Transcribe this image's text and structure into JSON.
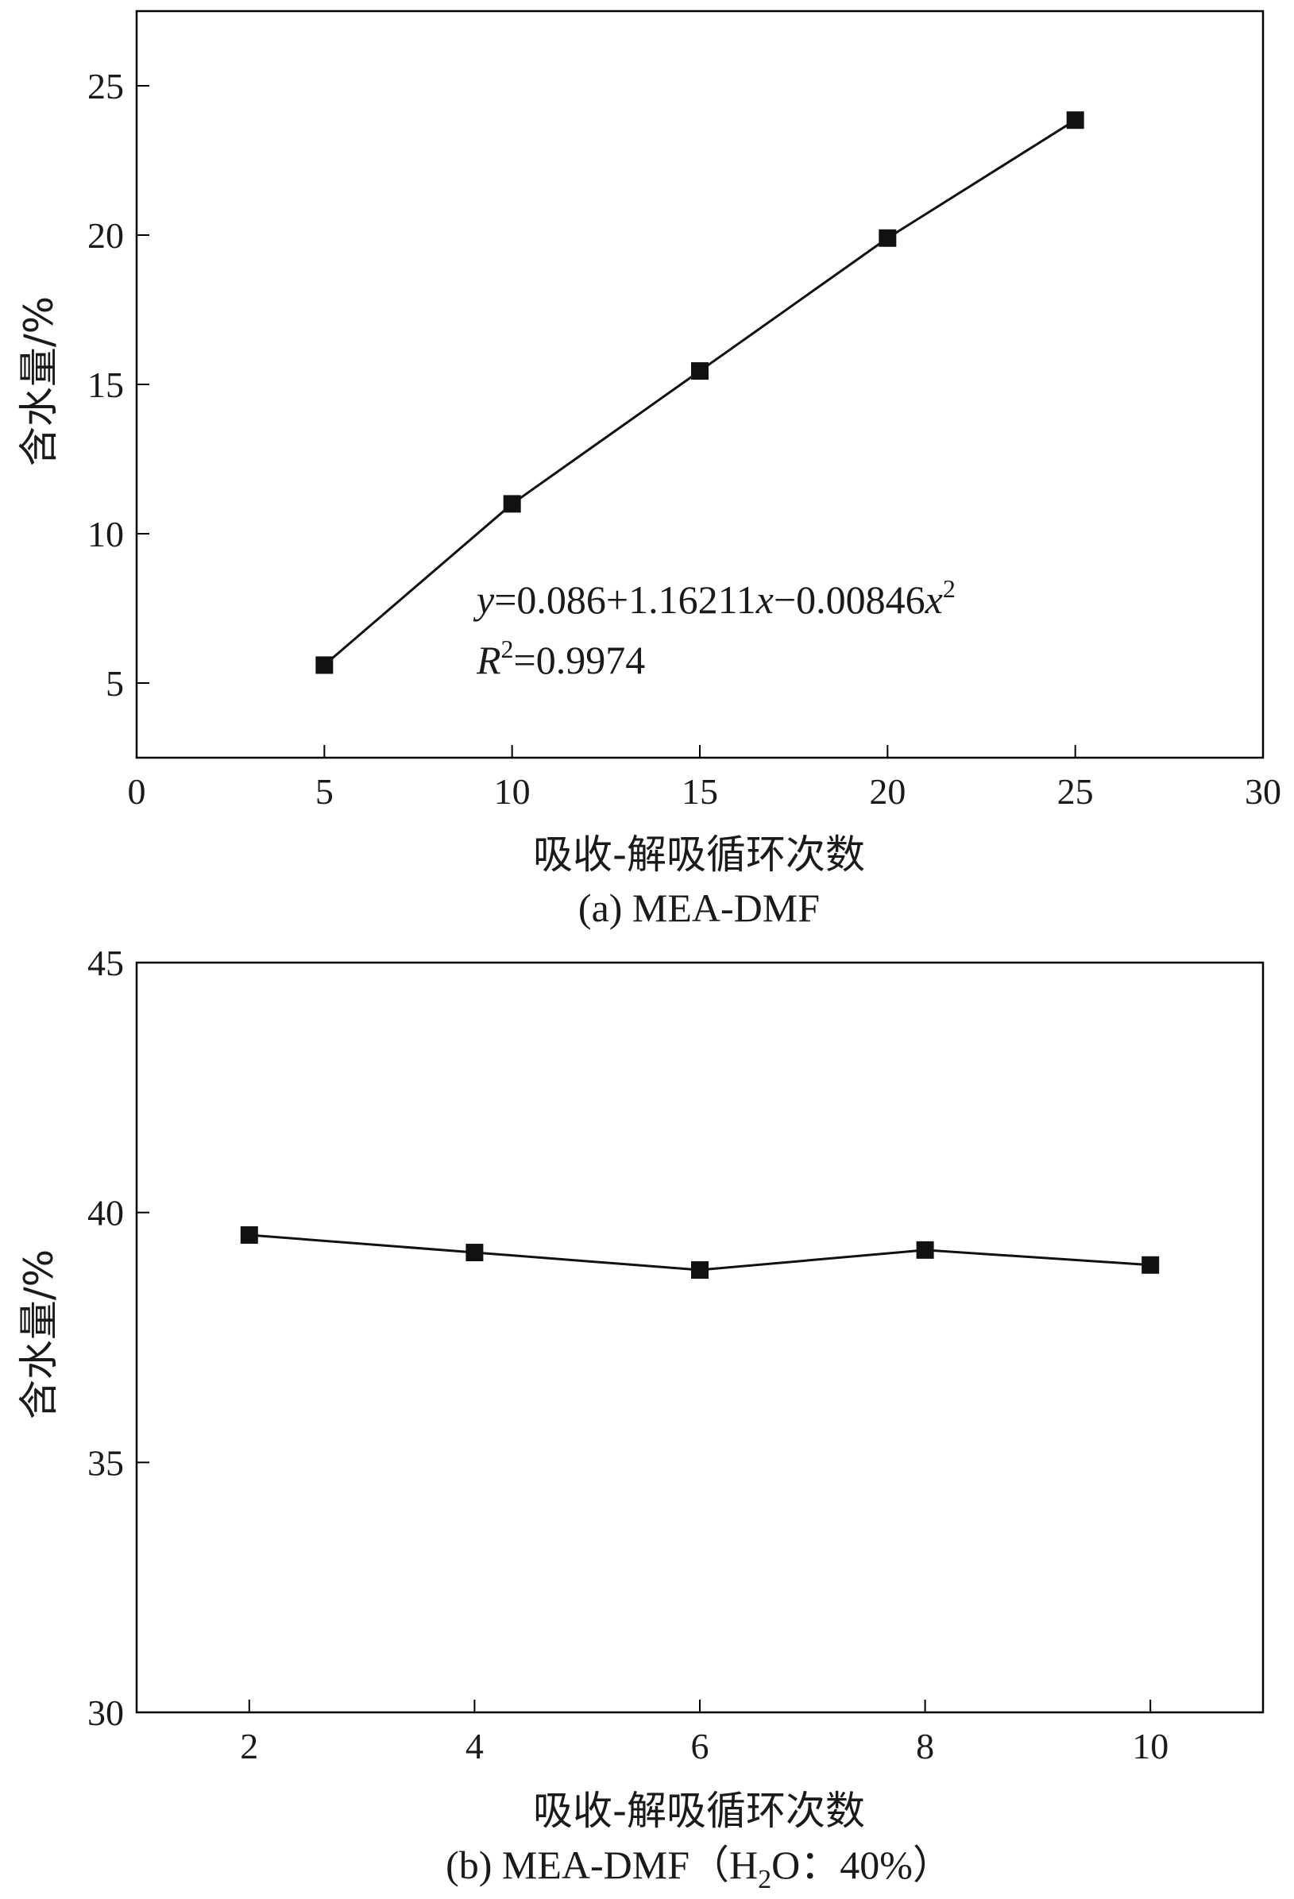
{
  "chart_data": [
    {
      "type": "line",
      "x": [
        5,
        10,
        15,
        20,
        25
      ],
      "series": [
        {
          "values": [
            5.6,
            11.0,
            15.45,
            19.9,
            23.85
          ],
          "color": "#111111",
          "marker": "square"
        }
      ],
      "xlabel": "吸收-解吸循环次数",
      "ylabel": "含水量/%",
      "xlim": [
        0,
        30
      ],
      "ylim": [
        2.5,
        27.5
      ],
      "xticks": [
        0,
        5,
        10,
        15,
        20,
        25,
        30
      ],
      "yticks": [
        5,
        10,
        15,
        20,
        25
      ],
      "grid": false,
      "caption": "(a) MEA-DMF",
      "annotation": {
        "eq_y": "y",
        "eq_body1": "=0.086+1.16211",
        "eq_x1": "x",
        "eq_body2": "−0.00846",
        "eq_x2": "x",
        "eq_sup": "2",
        "r_var": "R",
        "r_sup": "2",
        "r_val": "=0.9974"
      }
    },
    {
      "type": "line",
      "x": [
        2,
        4,
        6,
        8,
        10
      ],
      "series": [
        {
          "values": [
            39.55,
            39.2,
            38.85,
            39.25,
            38.95
          ],
          "color": "#111111",
          "marker": "square"
        }
      ],
      "xlabel": "吸收-解吸循环次数",
      "ylabel": "含水量/%",
      "xlim": [
        1,
        11
      ],
      "ylim": [
        30,
        45
      ],
      "xticks": [
        2,
        4,
        6,
        8,
        10
      ],
      "yticks": [
        30,
        35,
        40,
        45
      ],
      "grid": false,
      "caption_pre": "(b) MEA-DMF（H",
      "caption_sub": "2",
      "caption_post": "O：40%）"
    }
  ]
}
